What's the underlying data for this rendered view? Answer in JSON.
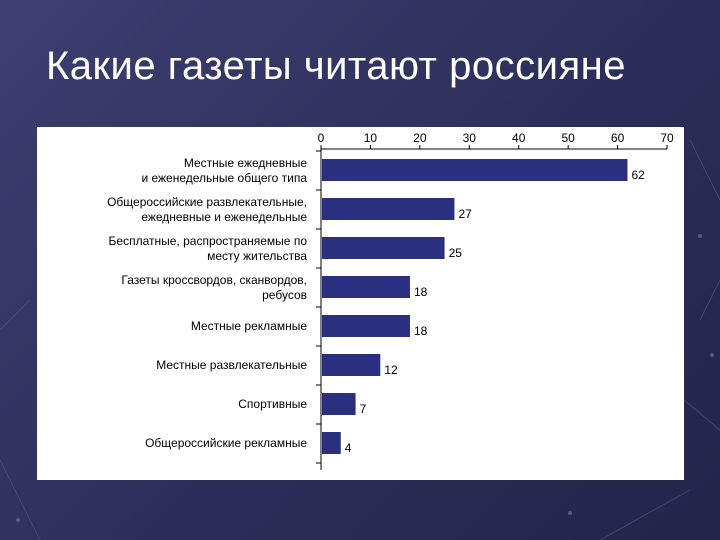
{
  "slide": {
    "title": "Какие газеты читают россияне"
  },
  "colors": {
    "background": "#2f3160",
    "bar_fill": "#2b2f7f",
    "panel": "#ffffff",
    "text": "#000000"
  },
  "chart_data": {
    "type": "bar",
    "orientation": "horizontal",
    "categories": [
      [
        "Местные ежедневные",
        "и еженедельные общего типа"
      ],
      [
        "Общероссийские развлекательные,",
        "ежедневные и еженедельные"
      ],
      [
        "Бесплатные, распространяемые по",
        "месту жительства"
      ],
      [
        "Газеты кроссвордов, сканвордов,",
        "ребусов"
      ],
      [
        "Местные рекламные"
      ],
      [
        "Местные развлекательные"
      ],
      [
        "Спортивные"
      ],
      [
        "Общероссийские рекламные"
      ]
    ],
    "values": [
      62,
      27,
      25,
      18,
      18,
      12,
      7,
      4
    ],
    "data_labels": [
      "62",
      "27",
      "25",
      "18",
      "18",
      "12",
      "7",
      "4"
    ],
    "xlim": [
      0,
      70
    ],
    "xticks": [
      "0",
      "10",
      "20",
      "30",
      "40",
      "50",
      "60",
      "70"
    ],
    "x_axis_position": "top",
    "grid": false,
    "legend": false
  }
}
